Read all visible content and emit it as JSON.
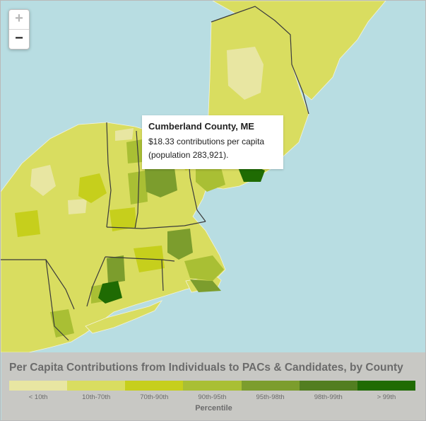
{
  "zoom": {
    "in_label": "+",
    "out_label": "−"
  },
  "tooltip": {
    "title": "Cumberland County, ME",
    "line1": "$18.33 contributions per capita",
    "line2": "(population 283,921)."
  },
  "legend": {
    "title": "Per Capita Contributions from Individuals to PACs & Candidates, by County",
    "axis_label": "Percentile",
    "bins": [
      {
        "label": "< 10th",
        "color": "#e8e6a2"
      },
      {
        "label": "10th-70th",
        "color": "#d9dd60"
      },
      {
        "label": "70th-90th",
        "color": "#c6cf1c"
      },
      {
        "label": "90th-95th",
        "color": "#a9bf34"
      },
      {
        "label": "95th-98th",
        "color": "#7c9d2d"
      },
      {
        "label": "98th-99th",
        "color": "#527e20"
      },
      {
        "label": "> 99th",
        "color": "#1f6b03"
      }
    ]
  },
  "colors": {
    "water": "#b8dde2",
    "state_border": "#3a3a3a",
    "county_border": "#f3f3dc"
  }
}
